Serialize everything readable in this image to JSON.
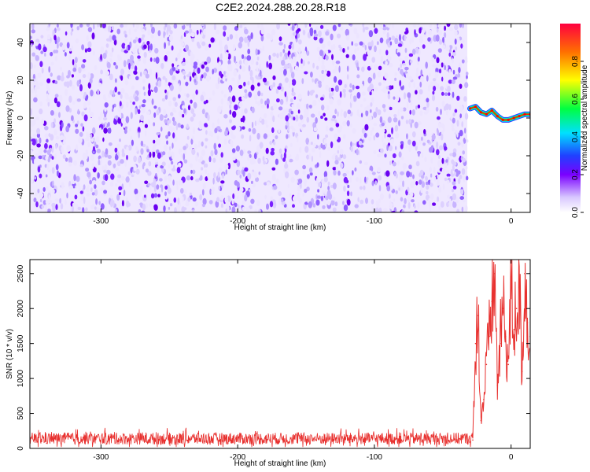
{
  "title": "C2E2.2024.288.20.28.R18",
  "chart_data": [
    {
      "type": "heatmap",
      "xlabel": "Height of straight line (km)",
      "ylabel": "Frequency (Hz)",
      "xlim": [
        -352,
        14
      ],
      "ylim": [
        -50,
        50
      ],
      "x_ticks": [
        -300,
        -200,
        -100,
        0
      ],
      "y_ticks": [
        -40,
        -20,
        0,
        20,
        40
      ],
      "noise_region_x": [
        -352,
        -32
      ],
      "signal_trace": [
        {
          "x": -30,
          "y": 5
        },
        {
          "x": -26,
          "y": 6
        },
        {
          "x": -22,
          "y": 3
        },
        {
          "x": -18,
          "y": 2
        },
        {
          "x": -14,
          "y": 4
        },
        {
          "x": -10,
          "y": 1
        },
        {
          "x": -6,
          "y": -1
        },
        {
          "x": -2,
          "y": -1
        },
        {
          "x": 2,
          "y": 0
        },
        {
          "x": 6,
          "y": 1
        },
        {
          "x": 10,
          "y": 2
        },
        {
          "x": 14,
          "y": 2
        }
      ],
      "colorbar": {
        "label": "Normalized spectral amplitude",
        "range": [
          0,
          1
        ],
        "ticks": [
          0.0,
          0.2,
          0.4,
          0.6,
          0.8
        ]
      }
    },
    {
      "type": "line",
      "xlabel": "Height of straight line (km)",
      "ylabel": "SNR (10 * v/v)",
      "xlim": [
        -352,
        14
      ],
      "ylim": [
        0,
        2700
      ],
      "x_ticks": [
        -300,
        -200,
        -100,
        0
      ],
      "y_ticks": [
        0,
        500,
        1000,
        1500,
        2000,
        2500
      ],
      "series": [
        {
          "color": "#e8312f",
          "baseline_region": {
            "x_range": [
              -352,
              -28
            ],
            "typical": 140,
            "min": 20,
            "max": 330
          },
          "x": [
            -28,
            -26,
            -24,
            -22,
            -20,
            -18,
            -16,
            -14,
            -12,
            -10,
            -8,
            -6,
            -4,
            -2,
            0,
            2,
            4,
            6,
            8,
            10,
            12,
            14
          ],
          "y": [
            120,
            1500,
            1900,
            400,
            700,
            1200,
            1600,
            2100,
            2500,
            900,
            1500,
            2000,
            1600,
            1200,
            2300,
            1700,
            2000,
            2300,
            1100,
            2500,
            1800,
            1600
          ]
        }
      ]
    }
  ],
  "colors": {
    "noise_purple": "#6a00f0",
    "noise_light": "#c7b0ff",
    "line_red": "#e8312f"
  }
}
